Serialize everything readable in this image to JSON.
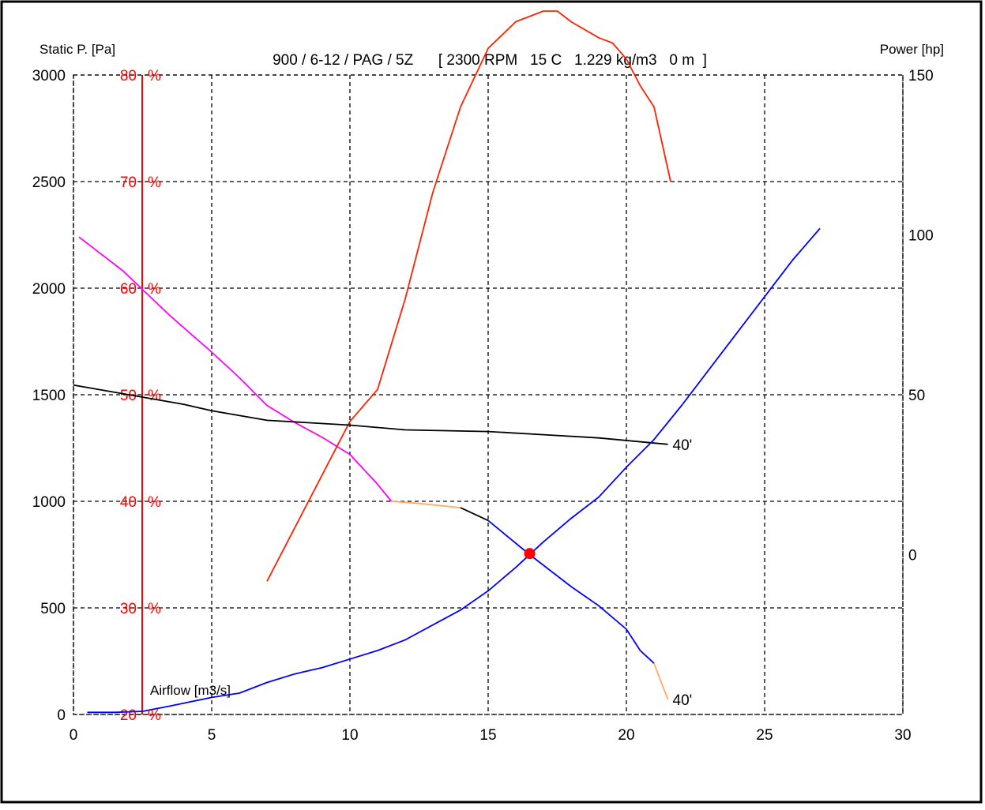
{
  "chart_data": {
    "type": "line",
    "title": "900 / 6-12 / PAG / 5Z      [ 2300 RPM   15 C   1.229 kg/m3   0 m  ]",
    "xlabel": "Airflow [m3/s]",
    "ylabel": "Static P. [Pa]",
    "y2label": "Power [hp]",
    "xlim": [
      0,
      30
    ],
    "ylim": [
      0,
      3000
    ],
    "x_ticks": [
      0,
      5,
      10,
      15,
      20,
      25,
      30
    ],
    "y_ticks": [
      0,
      500,
      1000,
      1500,
      2000,
      2500,
      3000
    ],
    "efficiency_ticks": [
      {
        "value": 20,
        "label": "20"
      },
      {
        "value": 30,
        "label": "30"
      },
      {
        "value": 40,
        "label": "40"
      },
      {
        "value": 50,
        "label": "50"
      },
      {
        "value": 60,
        "label": "60"
      },
      {
        "value": 70,
        "label": "70"
      },
      {
        "value": 80,
        "label": "80"
      }
    ],
    "efficiency_unit": "%",
    "efficiency_range": [
      20,
      80
    ],
    "power_ticks": [
      {
        "value": 0,
        "label": "0"
      },
      {
        "value": 50,
        "label": "50"
      },
      {
        "value": 100,
        "label": "100"
      },
      {
        "value": 150,
        "label": "150"
      }
    ],
    "power_range": [
      -50,
      150
    ],
    "grid": true,
    "colors": {
      "frame": "#000000",
      "grid": "#000000",
      "efficiency_axis": "#ff0000",
      "pressure_curve": "#ff00ff",
      "pressure_curve_alt": "#0000ff",
      "stall_segment": "#ffaa66",
      "efficiency_curve": "#ff2200",
      "power_curve": "#000000",
      "system_curve": "#0000ff",
      "operating_point": "#ff0000"
    },
    "series": [
      {
        "key": "static_pressure",
        "axis": "pressure",
        "segments": [
          {
            "color": "#ff00ff",
            "points": [
              [
                0.2,
                2240
              ],
              [
                1.8,
                2080
              ],
              [
                3.5,
                1870
              ],
              [
                5,
                1700
              ],
              [
                6,
                1580
              ],
              [
                7,
                1450
              ],
              [
                8,
                1370
              ],
              [
                9,
                1300
              ],
              [
                10,
                1220
              ],
              [
                11,
                1080
              ],
              [
                11.5,
                1000
              ]
            ]
          },
          {
            "color": "#ffaa66",
            "points": [
              [
                11.5,
                1000
              ],
              [
                12.5,
                990
              ],
              [
                14,
                970
              ]
            ]
          },
          {
            "color": "#000000",
            "points": [
              [
                14,
                970
              ],
              [
                15,
                910
              ]
            ]
          },
          {
            "color": "#0000ff",
            "points": [
              [
                15,
                910
              ],
              [
                16.5,
                750
              ],
              [
                18,
                600
              ],
              [
                19,
                510
              ],
              [
                20,
                400
              ],
              [
                20.5,
                300
              ],
              [
                21,
                240
              ]
            ]
          },
          {
            "color": "#ffaa66",
            "points": [
              [
                21,
                240
              ],
              [
                21.5,
                70
              ]
            ]
          }
        ],
        "end_label": "40'"
      },
      {
        "key": "efficiency",
        "axis": "efficiency",
        "segments": [
          {
            "color": "#ff2200",
            "points": [
              [
                7,
                32.5
              ],
              [
                8,
                37.5
              ],
              [
                9,
                42.5
              ],
              [
                10,
                47.5
              ],
              [
                11,
                50.5
              ],
              [
                12,
                59
              ],
              [
                13,
                69
              ],
              [
                14,
                77
              ],
              [
                15,
                82.5
              ],
              [
                16,
                85
              ],
              [
                17,
                86
              ],
              [
                17.5,
                86
              ],
              [
                18,
                85
              ],
              [
                19,
                83.5
              ],
              [
                19.5,
                83
              ],
              [
                20,
                81.5
              ],
              [
                20.5,
                79
              ],
              [
                21,
                77
              ],
              [
                21.6,
                70
              ]
            ]
          }
        ]
      },
      {
        "key": "power",
        "axis": "power",
        "segments": [
          {
            "color": "#000000",
            "points": [
              [
                0,
                53
              ],
              [
                1,
                51.5
              ],
              [
                2,
                50
              ],
              [
                3,
                48.5
              ],
              [
                4,
                47
              ],
              [
                5,
                45
              ],
              [
                7,
                42
              ],
              [
                10,
                40.5
              ],
              [
                12,
                39
              ],
              [
                15,
                38.5
              ],
              [
                17,
                37.5
              ],
              [
                19,
                36.5
              ],
              [
                21.5,
                34.5
              ]
            ]
          }
        ],
        "end_label": "40'"
      },
      {
        "key": "system_curve",
        "axis": "pressure",
        "segments": [
          {
            "color": "#0000ff",
            "points": [
              [
                0.5,
                10
              ],
              [
                1.5,
                10
              ],
              [
                2.5,
                15
              ],
              [
                3.5,
                40
              ],
              [
                5,
                80
              ],
              [
                6,
                100
              ],
              [
                7,
                150
              ],
              [
                8,
                190
              ],
              [
                9,
                220
              ],
              [
                10,
                260
              ],
              [
                11,
                300
              ],
              [
                12,
                350
              ],
              [
                13,
                420
              ],
              [
                14,
                490
              ],
              [
                15,
                580
              ],
              [
                16,
                690
              ],
              [
                17,
                810
              ],
              [
                18,
                920
              ],
              [
                19,
                1020
              ],
              [
                20,
                1160
              ],
              [
                21,
                1290
              ],
              [
                22,
                1450
              ],
              [
                23,
                1620
              ],
              [
                24,
                1790
              ],
              [
                25,
                1960
              ],
              [
                26,
                2130
              ],
              [
                27,
                2280
              ]
            ]
          }
        ]
      }
    ],
    "operating_point": {
      "x": 16.5,
      "y": 755
    }
  }
}
